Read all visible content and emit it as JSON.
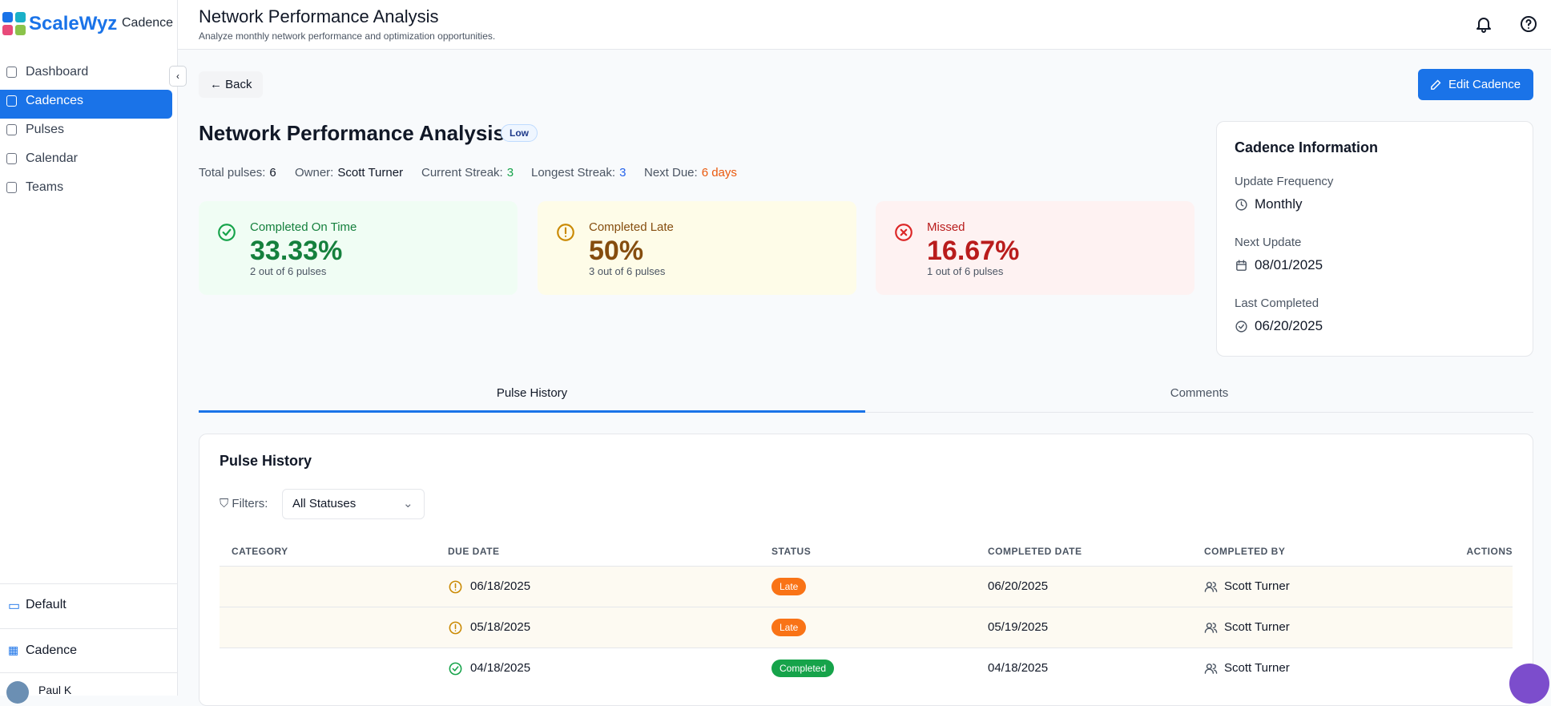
{
  "brand": {
    "name": "ScaleWyz",
    "product": "Cadence"
  },
  "nav": [
    "Dashboard",
    "Cadences",
    "Pulses",
    "Calendar",
    "Teams"
  ],
  "sidebar_bottom": {
    "workspace": "Default",
    "app": "Cadence",
    "user": "Paul K"
  },
  "header": {
    "title": "Network Performance Analysis",
    "subtitle": "Analyze monthly network performance and optimization opportunities."
  },
  "actions": {
    "back": "Back",
    "edit": "Edit Cadence"
  },
  "cadence": {
    "title": "Network Performance Analysis",
    "priority": "Low",
    "stats": [
      {
        "label": "Total pulses:",
        "value": 6
      },
      {
        "label": "Owner:",
        "value": "Scott Turner"
      },
      {
        "label": "Current Streak:",
        "value": 3
      },
      {
        "label": "Longest Streak:",
        "value": 3
      },
      {
        "label": "Next Due:",
        "value": "6 days"
      }
    ]
  },
  "cards": [
    {
      "label": "Completed On Time",
      "value": "33.33%",
      "detail": "2 out of 6 pulses"
    },
    {
      "label": "Completed Late",
      "value": "50%",
      "detail": "3 out of 6 pulses"
    },
    {
      "label": "Missed",
      "value": "16.67%",
      "detail": "1 out of 6 pulses"
    }
  ],
  "info": {
    "title": "Cadence Information",
    "fields": [
      {
        "label": "Update Frequency",
        "value": "Monthly"
      },
      {
        "label": "Next Update",
        "value": "08/01/2025"
      },
      {
        "label": "Last Completed",
        "value": "06/20/2025"
      }
    ]
  },
  "tabs": [
    "Pulse History",
    "Comments"
  ],
  "history": {
    "title": "Pulse History",
    "filter_label": "Filters:",
    "filter_value": "All Statuses",
    "columns": [
      "CATEGORY",
      "DUE DATE",
      "STATUS",
      "COMPLETED DATE",
      "COMPLETED BY",
      "ACTIONS"
    ],
    "rows": [
      {
        "due": "06/18/2025",
        "status": "Late",
        "completed": "06/20/2025",
        "by": "Scott Turner"
      },
      {
        "due": "05/18/2025",
        "status": "Late",
        "completed": "05/19/2025",
        "by": "Scott Turner"
      },
      {
        "due": "04/18/2025",
        "status": "Completed",
        "completed": "04/18/2025",
        "by": "Scott Turner"
      }
    ]
  }
}
